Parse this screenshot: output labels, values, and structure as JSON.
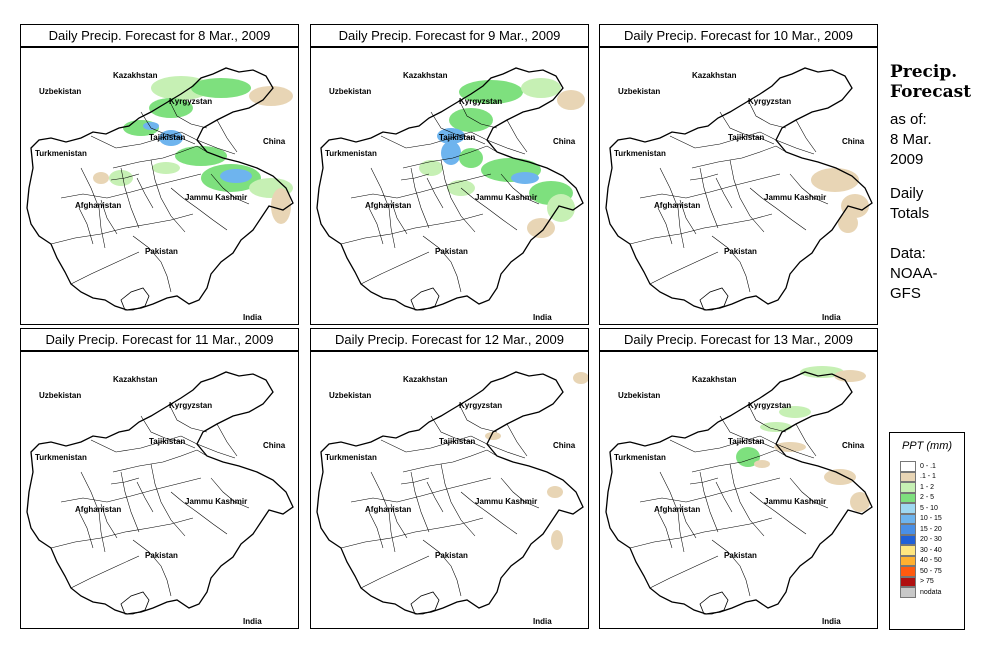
{
  "panels": [
    {
      "title": "Daily Precip. Forecast for  8 Mar., 2009"
    },
    {
      "title": "Daily Precip. Forecast for  9 Mar., 2009"
    },
    {
      "title": "Daily Precip. Forecast for  10 Mar., 2009"
    },
    {
      "title": "Daily Precip. Forecast for  11 Mar., 2009"
    },
    {
      "title": "Daily Precip. Forecast for  12 Mar., 2009"
    },
    {
      "title": "Daily Precip. Forecast for  13 Mar., 2009"
    }
  ],
  "map_labels": {
    "kazakhstan": "Kazakhstan",
    "uzbekistan": "Uzbekistan",
    "kyrgyzstan": "Kyrgyzstan",
    "tajikistan": "Tajikistan",
    "turkmenistan": "Turkmenistan",
    "china": "China",
    "afghanistan": "Afghanistan",
    "jammu_kashmir": "Jammu Kashmir",
    "pakistan": "Pakistan",
    "india": "India"
  },
  "side": {
    "title_line1": "Precip.",
    "title_line2": "Forecast",
    "asof_line1": "as of:",
    "asof_line2": "8 Mar.",
    "asof_line3": "2009",
    "daily_line1": "Daily",
    "daily_line2": "Totals",
    "data_line1": "Data:",
    "data_line2": "NOAA-",
    "data_line3": "GFS"
  },
  "legend": {
    "title": "PPT (mm)",
    "items": [
      {
        "label": "0 - .1",
        "color": "#ffffff"
      },
      {
        "label": ".1 - 1",
        "color": "#e8d5b5"
      },
      {
        "label": "1 - 2",
        "color": "#c6f0b4"
      },
      {
        "label": "2 - 5",
        "color": "#7ee07e"
      },
      {
        "label": "5 - 10",
        "color": "#9fd8f2"
      },
      {
        "label": "10 - 15",
        "color": "#6eb4ee"
      },
      {
        "label": "15 - 20",
        "color": "#4a8fe6"
      },
      {
        "label": "20 - 30",
        "color": "#2060d8"
      },
      {
        "label": "30 - 40",
        "color": "#ffe680"
      },
      {
        "label": "40 - 50",
        "color": "#ffb030"
      },
      {
        "label": "50 - 75",
        "color": "#ff5a10"
      },
      {
        "label": "> 75",
        "color": "#b01010"
      },
      {
        "label": "nodata",
        "color": "#c8c8c8"
      }
    ]
  }
}
